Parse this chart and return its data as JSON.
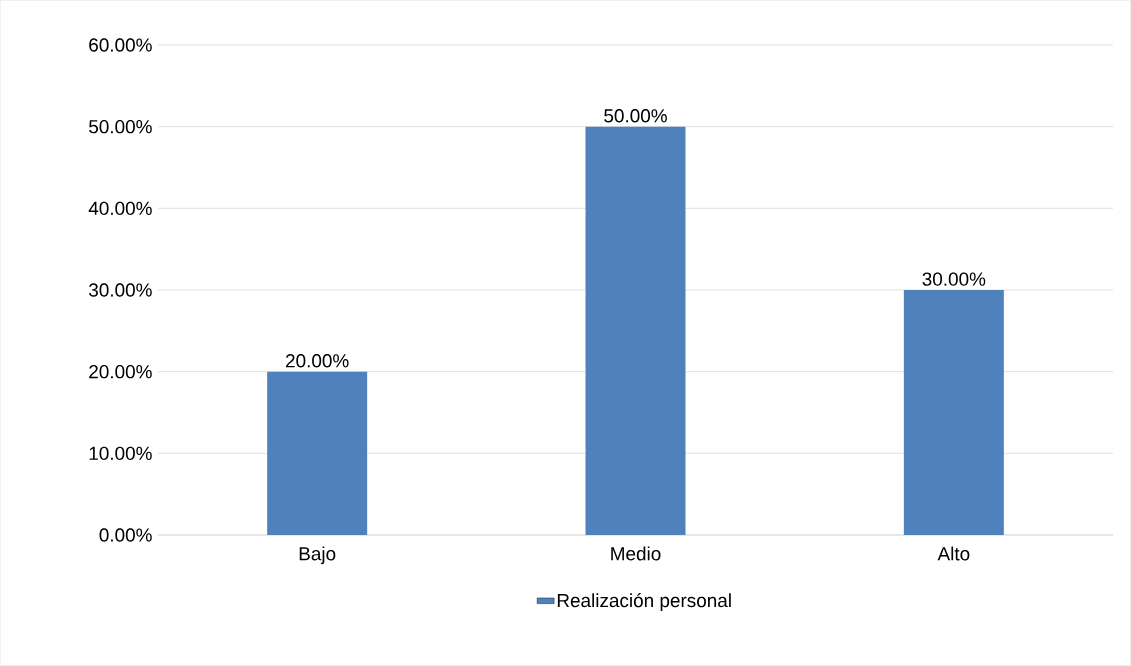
{
  "chart_data": {
    "type": "bar",
    "categories": [
      "Bajo",
      "Medio",
      "Alto"
    ],
    "series": [
      {
        "name": "Realización personal",
        "color": "#4f81bd",
        "values": [
          20,
          50,
          30
        ],
        "value_labels": [
          "20.00%",
          "50.00%",
          "30.00%"
        ]
      }
    ],
    "ylim": [
      0,
      60
    ],
    "yticks": [
      {
        "value": 0,
        "label": "0.00%"
      },
      {
        "value": 10,
        "label": "10.00%"
      },
      {
        "value": 20,
        "label": "20.00%"
      },
      {
        "value": 30,
        "label": "30.00%"
      },
      {
        "value": 40,
        "label": "40.00%"
      },
      {
        "value": 50,
        "label": "50.00%"
      },
      {
        "value": 60,
        "label": "60.00%"
      }
    ],
    "grid": "y",
    "legend": "bottom"
  }
}
